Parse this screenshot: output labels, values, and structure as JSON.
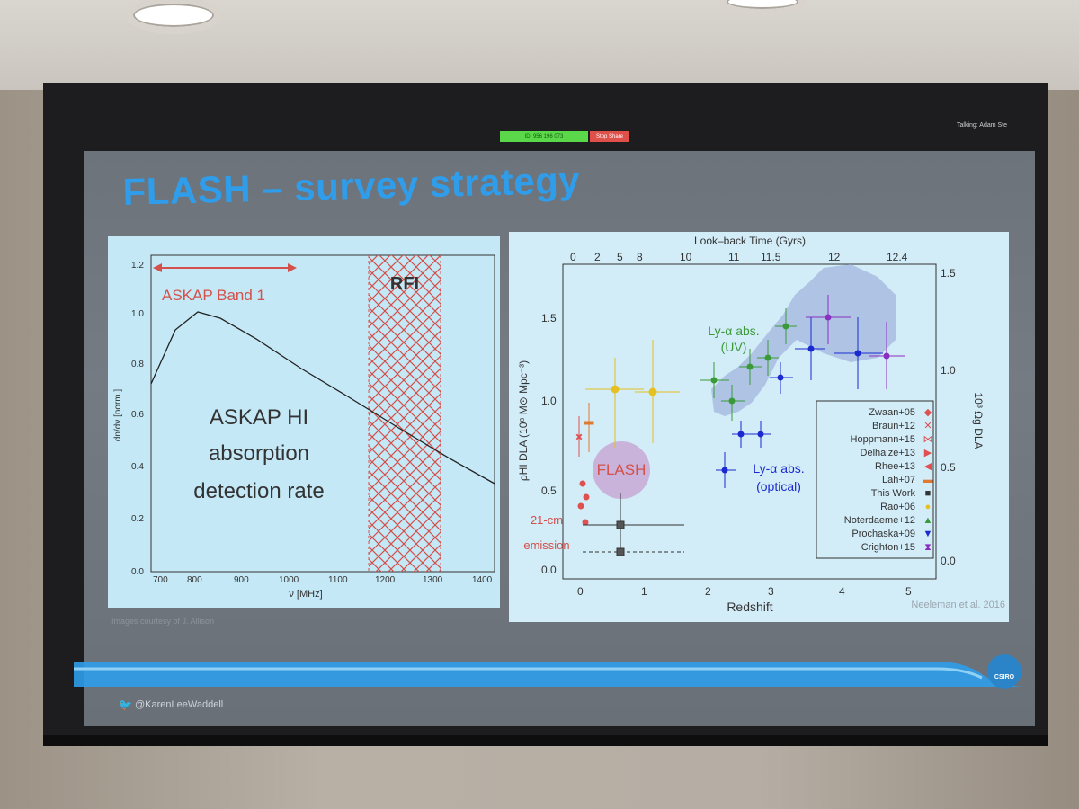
{
  "slide": {
    "title": "FLASH – survey strategy",
    "credit": "Images courtesy of J. Allison",
    "twitter_handle": "@KarenLeeWaddell",
    "logo_text": "CSIRO",
    "meeting_bar": {
      "status": "ID: 956 196 073",
      "stop_share": "Stop Share",
      "talking": "Talking: Adam Ste"
    }
  },
  "left_plot": {
    "band_label": "ASKAP Band 1",
    "rfi_label": "RFI",
    "annotation_lines": [
      "ASKAP HI",
      "absorption",
      "detection rate"
    ],
    "ylabel": "dn/dν [norm.]",
    "xlabel": "ν [MHz]",
    "xticks": [
      "700",
      "800",
      "900",
      "1000",
      "1100",
      "1200",
      "1300",
      "1400"
    ],
    "yticks": [
      "0.0",
      "0.2",
      "0.4",
      "0.6",
      "0.8",
      "1.0",
      "1.2"
    ]
  },
  "right_plot": {
    "top_axis_label": "Look–back Time (Gyrs)",
    "top_ticks": [
      "0",
      "2",
      "5",
      "8",
      "10",
      "11",
      "11.5",
      "12",
      "12.4"
    ],
    "bottom_ticks": [
      "0",
      "1",
      "2",
      "3",
      "4",
      "5"
    ],
    "xlabel": "Redshift",
    "ylabel": "ρHI DLA (10⁸ M⊙ Mpc⁻³)",
    "right_ylabel": "10³ Ωg DLA",
    "left_yticks": [
      "0.0",
      "0.5",
      "1.0",
      "1.5"
    ],
    "right_yticks": [
      "0.0",
      "0.5",
      "1.0",
      "1.5"
    ],
    "flash_label": "FLASH",
    "uv_label_1": "Ly-α abs.",
    "uv_label_2": "(UV)",
    "optical_label_1": "Ly-α abs.",
    "optical_label_2": "(optical)",
    "emission_label_1": "21-cm",
    "emission_label_2": "emission",
    "source": "Neeleman et al. 2016",
    "legend": [
      {
        "name": "Zwaan+05",
        "color": "#e05050",
        "symbol": "◆"
      },
      {
        "name": "Braun+12",
        "color": "#e05050",
        "symbol": "✕"
      },
      {
        "name": "Hoppmann+15",
        "color": "#e05050",
        "symbol": "⋈"
      },
      {
        "name": "Delhaize+13",
        "color": "#e05050",
        "symbol": "▶"
      },
      {
        "name": "Rhee+13",
        "color": "#e05050",
        "symbol": "◀"
      },
      {
        "name": "Lah+07",
        "color": "#e07a30",
        "symbol": "▬"
      },
      {
        "name": "This Work",
        "color": "#333333",
        "symbol": "■"
      },
      {
        "name": "Rao+06",
        "color": "#e6c020",
        "symbol": "●"
      },
      {
        "name": "Noterdaeme+12",
        "color": "#3a9a3a",
        "symbol": "▲"
      },
      {
        "name": "Prochaska+09",
        "color": "#1a2ad0",
        "symbol": "▼"
      },
      {
        "name": "Crighton+15",
        "color": "#8a30c0",
        "symbol": "⧗"
      }
    ]
  }
}
